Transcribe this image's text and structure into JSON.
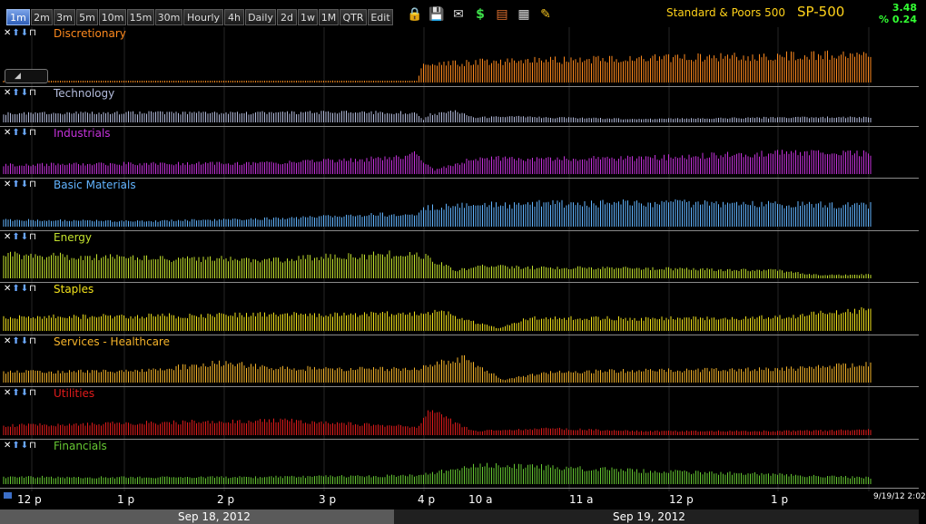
{
  "toolbar": {
    "timeframes": [
      "1m",
      "2m",
      "3m",
      "5m",
      "10m",
      "15m",
      "30m",
      "Hourly",
      "4h",
      "Daily",
      "2d",
      "1w",
      "1M",
      "QTR",
      "Edit"
    ],
    "active_timeframe": "1m",
    "tools": [
      "lock-icon",
      "save-icon",
      "mail-icon",
      "dollar-icon",
      "print-icon",
      "calculator-icon",
      "pencil-icon"
    ]
  },
  "symbol": {
    "name": "Standard & Poors 500",
    "ticker": "SP-500",
    "change_abs": "3.48",
    "change_pct": "% 0.24",
    "change_color": "#33ff33"
  },
  "pane_controls": {
    "close": "✕",
    "up": "⬆",
    "down": "⬇",
    "pin": "⊓"
  },
  "chart_data": [
    {
      "type": "bar",
      "title": "Discretionary",
      "color": "#ff8a1e",
      "baseline": 0.04,
      "x": [
        0,
        455,
        462,
        520,
        700,
        850,
        960
      ],
      "values": [
        0.04,
        0.05,
        0.5,
        0.62,
        0.72,
        0.8,
        0.85
      ]
    },
    {
      "type": "bar",
      "title": "Technology",
      "color": "#b4bcdc",
      "baseline": 0.35,
      "x": [
        0,
        120,
        260,
        380,
        455,
        462,
        470,
        500,
        520,
        560,
        700,
        850,
        960
      ],
      "values": [
        0.55,
        0.6,
        0.58,
        0.62,
        0.6,
        0.15,
        0.5,
        0.7,
        0.3,
        0.35,
        0.2,
        0.3,
        0.32
      ]
    },
    {
      "type": "bar",
      "title": "Industrials",
      "color": "#c632dc",
      "baseline": 0.2,
      "x": [
        0,
        150,
        300,
        420,
        455,
        475,
        500,
        520,
        600,
        700,
        850,
        960
      ],
      "values": [
        0.35,
        0.4,
        0.42,
        0.6,
        0.75,
        0.15,
        0.4,
        0.6,
        0.58,
        0.6,
        0.8,
        0.78
      ]
    },
    {
      "type": "bar",
      "title": "Basic Materials",
      "color": "#62b4ff",
      "baseline": 0.12,
      "x": [
        0,
        150,
        300,
        420,
        455,
        462,
        600,
        700,
        850,
        960
      ],
      "values": [
        0.25,
        0.2,
        0.3,
        0.45,
        0.45,
        0.72,
        0.85,
        0.88,
        0.82,
        0.78
      ]
    },
    {
      "type": "bar",
      "title": "Energy",
      "color": "#c3e12d",
      "baseline": 0.05,
      "x": [
        0,
        150,
        300,
        455,
        500,
        520,
        600,
        700,
        850,
        900,
        960
      ],
      "values": [
        0.9,
        0.75,
        0.72,
        0.95,
        0.3,
        0.45,
        0.4,
        0.38,
        0.3,
        0.12,
        0.15
      ]
    },
    {
      "type": "bar",
      "title": "Staples",
      "color": "#f2e21b",
      "baseline": 0.2,
      "x": [
        0,
        150,
        300,
        455,
        480,
        520,
        545,
        580,
        700,
        850,
        960
      ],
      "values": [
        0.5,
        0.55,
        0.6,
        0.65,
        0.75,
        0.3,
        0.1,
        0.5,
        0.45,
        0.5,
        0.8
      ]
    },
    {
      "type": "bar",
      "title": "Services - Healthcare",
      "color": "#f5b32a",
      "baseline": 0.15,
      "x": [
        0,
        150,
        240,
        300,
        455,
        490,
        510,
        550,
        600,
        700,
        850,
        960
      ],
      "values": [
        0.4,
        0.45,
        0.75,
        0.55,
        0.5,
        0.85,
        0.9,
        0.1,
        0.4,
        0.45,
        0.5,
        0.7
      ]
    },
    {
      "type": "bar",
      "title": "Utilities",
      "color": "#e21b1b",
      "baseline": 0.1,
      "x": [
        0,
        150,
        300,
        455,
        470,
        500,
        520,
        600,
        700,
        850,
        960
      ],
      "values": [
        0.35,
        0.45,
        0.55,
        0.3,
        0.95,
        0.4,
        0.15,
        0.25,
        0.15,
        0.15,
        0.2
      ]
    },
    {
      "type": "bar",
      "title": "Financials",
      "color": "#66c832",
      "baseline": 0.1,
      "x": [
        0,
        150,
        300,
        455,
        520,
        540,
        700,
        850,
        960
      ],
      "values": [
        0.3,
        0.28,
        0.3,
        0.35,
        0.75,
        0.8,
        0.55,
        0.4,
        0.25
      ]
    }
  ],
  "xaxis": {
    "ticks": [
      "12 p",
      "1 p",
      "2 p",
      "3 p",
      "4 p",
      "10 a",
      "11 a",
      "12 p",
      "1 p"
    ],
    "timestamp": "9/19/12 2:02",
    "dates": [
      "Sep 18, 2012",
      "Sep 19, 2012"
    ]
  }
}
